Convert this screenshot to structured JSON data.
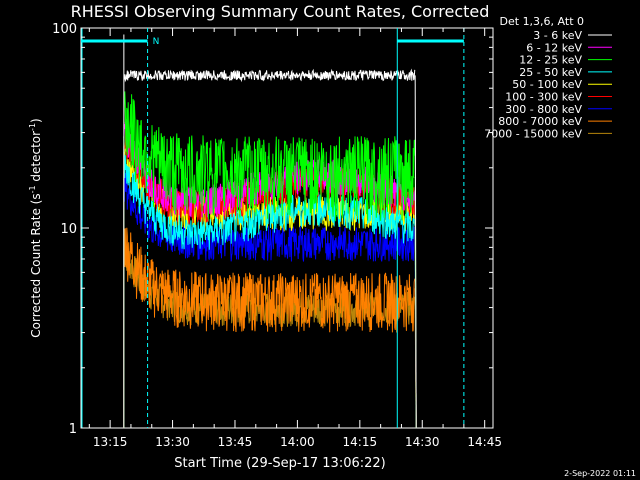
{
  "chart_data": {
    "type": "line",
    "title": "RHESSI Observing Summary Count Rates, Corrected",
    "xlabel": "Start Time (29-Sep-17 13:06:22)",
    "ylabel_main": "Corrected Count Rate (s",
    "ylabel_sup1": "-1",
    "ylabel_mid": " detector",
    "ylabel_sup2": "-1",
    "ylabel_end": ")",
    "yscale": "log",
    "ylim": [
      1,
      100
    ],
    "y_ticks": [
      "1",
      "10",
      "100"
    ],
    "x_range_minutes": [
      "13:08",
      "14:47"
    ],
    "x_ticks": [
      "13:15",
      "13:30",
      "13:45",
      "14:00",
      "14:15",
      "14:30",
      "14:45"
    ],
    "legend_header": "Det 1,3,6, Att 0",
    "legend_placement": "top-right",
    "series": [
      {
        "name": "3 - 6 keV",
        "color": "#ffffff",
        "level": 58
      },
      {
        "name": "6 - 12 keV",
        "color": "#ff00ff",
        "level": 16
      },
      {
        "name": "12 - 25 keV",
        "color": "#00ff00",
        "level": 18
      },
      {
        "name": "25 - 50 keV",
        "color": "#00ffff",
        "level": 11
      },
      {
        "name": "50 - 100 keV",
        "color": "#ffff00",
        "level": 12
      },
      {
        "name": "100 - 300 keV",
        "color": "#ff0000",
        "level": 15
      },
      {
        "name": "300 - 800 keV",
        "color": "#0000ff",
        "level": 8.5
      },
      {
        "name": "800 - 7000 keV",
        "color": "#ff8000",
        "level": 5
      },
      {
        "name": "7000 - 15000 keV",
        "color": "#b8860b",
        "level": 4
      }
    ],
    "annotations": {
      "attenuator_marker": "N",
      "vertical_lines_time": [
        "13:24",
        "14:24",
        "14:40"
      ],
      "cyan_bar_segments": [
        [
          "13:08",
          "13:24"
        ],
        [
          "14:24",
          "14:40"
        ]
      ]
    },
    "footer_date": "2-Sep-2022 01:11"
  }
}
